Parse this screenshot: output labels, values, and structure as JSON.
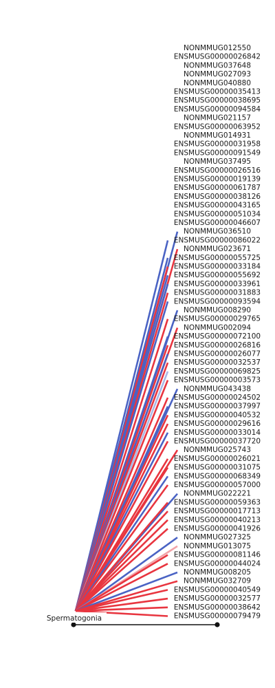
{
  "diagram": {
    "source": {
      "label": "Spermatogonia"
    },
    "targets": [
      {
        "label": "NONMMUG012550",
        "color": "none"
      },
      {
        "label": "ENSMUSG00000026842",
        "color": "none"
      },
      {
        "label": "NONMMUG037648",
        "color": "none"
      },
      {
        "label": "NONMMUG027093",
        "color": "none"
      },
      {
        "label": "NONMMUG040880",
        "color": "none"
      },
      {
        "label": "ENSMUSG00000035413",
        "color": "none"
      },
      {
        "label": "ENSMUSG00000038695",
        "color": "none"
      },
      {
        "label": "ENSMUSG00000094584",
        "color": "none"
      },
      {
        "label": "NONMMUG021157",
        "color": "none"
      },
      {
        "label": "ENSMUSG00000063952",
        "color": "none"
      },
      {
        "label": "NONMMUG014931",
        "color": "none"
      },
      {
        "label": "ENSMUSG00000031958",
        "color": "none"
      },
      {
        "label": "ENSMUSG00000091549",
        "color": "none"
      },
      {
        "label": "NONMMUG037495",
        "color": "none"
      },
      {
        "label": "ENSMUSG00000026516",
        "color": "none"
      },
      {
        "label": "ENSMUSG00000019139",
        "color": "none"
      },
      {
        "label": "ENSMUSG00000061787",
        "color": "none"
      },
      {
        "label": "ENSMUSG00000038126",
        "color": "none"
      },
      {
        "label": "ENSMUSG00000043165",
        "color": "none"
      },
      {
        "label": "ENSMUSG00000051034",
        "color": "none"
      },
      {
        "label": "ENSMUSG00000046607",
        "color": "none"
      },
      {
        "label": "NONMMUG036510",
        "color": "blue"
      },
      {
        "label": "ENSMUSG00000086022",
        "color": "blue"
      },
      {
        "label": "NONMMUG023671",
        "color": "red"
      },
      {
        "label": "ENSMUSG00000055725",
        "color": "blue"
      },
      {
        "label": "ENSMUSG00000033184",
        "color": "red"
      },
      {
        "label": "ENSMUSG00000055692",
        "color": "blue"
      },
      {
        "label": "ENSMUSG00000033961",
        "color": "blue"
      },
      {
        "label": "ENSMUSG00000031883",
        "color": "red"
      },
      {
        "label": "ENSMUSG00000093594",
        "color": "blue"
      },
      {
        "label": "NONMMUG008290",
        "color": "blue"
      },
      {
        "label": "ENSMUSG00000029765",
        "color": "red"
      },
      {
        "label": "NONMMUG002094",
        "color": "red"
      },
      {
        "label": "ENSMUSG00000072100",
        "color": "blue"
      },
      {
        "label": "ENSMUSG00000026816",
        "color": "red"
      },
      {
        "label": "ENSMUSG00000026077",
        "color": "blue"
      },
      {
        "label": "ENSMUSG00000032537",
        "color": "red"
      },
      {
        "label": "ENSMUSG00000069825",
        "color": "lightblue"
      },
      {
        "label": "ENSMUSG00000003573",
        "color": "red"
      },
      {
        "label": "NONMMUG043438",
        "color": "blue"
      },
      {
        "label": "ENSMUSG00000024502",
        "color": "red"
      },
      {
        "label": "ENSMUSG00000037997",
        "color": "blue"
      },
      {
        "label": "ENSMUSG00000040532",
        "color": "red"
      },
      {
        "label": "ENSMUSG00000029616",
        "color": "red"
      },
      {
        "label": "ENSMUSG00000033014",
        "color": "blue"
      },
      {
        "label": "ENSMUSG00000037720",
        "color": "red"
      },
      {
        "label": "NONMMUG025743",
        "color": "red"
      },
      {
        "label": "ENSMUSG00000026021",
        "color": "red"
      },
      {
        "label": "ENSMUSG00000031075",
        "color": "red"
      },
      {
        "label": "ENSMUSG00000068349",
        "color": "blue"
      },
      {
        "label": "ENSMUSG00000057000",
        "color": "red"
      },
      {
        "label": "NONMMUG022221",
        "color": "blue"
      },
      {
        "label": "ENSMUSG00000059363",
        "color": "red"
      },
      {
        "label": "ENSMUSG00000017713",
        "color": "red"
      },
      {
        "label": "ENSMUSG00000040213",
        "color": "red"
      },
      {
        "label": "ENSMUSG00000041926",
        "color": "red"
      },
      {
        "label": "NONMMUG027325",
        "color": "blue"
      },
      {
        "label": "NONMMUG013075",
        "color": "pink"
      },
      {
        "label": "ENSMUSG00000081146",
        "color": "red"
      },
      {
        "label": "ENSMUSG00000044024",
        "color": "red"
      },
      {
        "label": "NONMMUG008205",
        "color": "blue"
      },
      {
        "label": "NONMMUG032709",
        "color": "red"
      },
      {
        "label": "ENSMUSG00000040549",
        "color": "red"
      },
      {
        "label": "ENSMUSG00000032577",
        "color": "red"
      },
      {
        "label": "ENSMUSG00000038642",
        "color": "red"
      },
      {
        "label": "ENSMUSG00000079479",
        "color": "red"
      }
    ],
    "colors": {
      "blue": "#4a63c4",
      "red": "#e8353f",
      "lightblue": "#a9b8e6",
      "pink": "#f2a3a8",
      "axis": "#111111"
    }
  }
}
